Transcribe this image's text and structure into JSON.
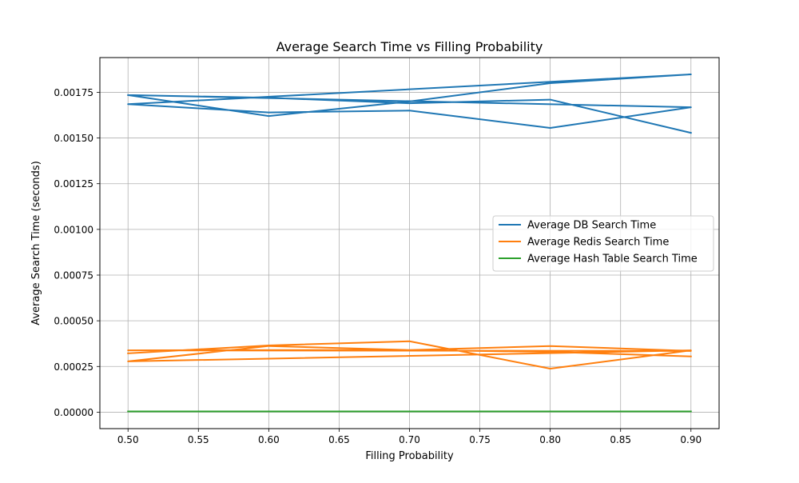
{
  "chart_data": {
    "type": "line",
    "title": "Average Search Time vs Filling Probability",
    "xlabel": "Filling Probability",
    "ylabel": "Average Search Time (seconds)",
    "xlim": [
      0.48,
      0.92
    ],
    "ylim": [
      -9e-05,
      0.00194
    ],
    "x_ticks": [
      {
        "value": 0.5,
        "label": "0.50"
      },
      {
        "value": 0.55,
        "label": "0.55"
      },
      {
        "value": 0.6,
        "label": "0.60"
      },
      {
        "value": 0.65,
        "label": "0.65"
      },
      {
        "value": 0.7,
        "label": "0.70"
      },
      {
        "value": 0.75,
        "label": "0.75"
      },
      {
        "value": 0.8,
        "label": "0.80"
      },
      {
        "value": 0.85,
        "label": "0.85"
      },
      {
        "value": 0.9,
        "label": "0.90"
      }
    ],
    "y_ticks": [
      {
        "value": 0.0,
        "label": "0.00000"
      },
      {
        "value": 0.00025,
        "label": "0.00025"
      },
      {
        "value": 0.0005,
        "label": "0.00050"
      },
      {
        "value": 0.00075,
        "label": "0.00075"
      },
      {
        "value": 0.001,
        "label": "0.00100"
      },
      {
        "value": 0.00125,
        "label": "0.00125"
      },
      {
        "value": 0.0015,
        "label": "0.00150"
      },
      {
        "value": 0.00175,
        "label": "0.00175"
      }
    ],
    "grid": true,
    "legend_position": "center-right",
    "series": [
      {
        "name": "Average DB Search Time",
        "color": "#1f77b4",
        "x": [
          0.5,
          0.6,
          0.7,
          0.8,
          0.9,
          0.5,
          0.6,
          0.7,
          0.8,
          0.9,
          0.5,
          0.6,
          0.7,
          0.8,
          0.9
        ],
        "y": [
          0.001735,
          0.00162,
          0.0017,
          0.0018,
          0.001848,
          0.001685,
          0.00164,
          0.00165,
          0.001555,
          0.001668,
          0.001735,
          0.00172,
          0.00169,
          0.00171,
          0.001528
        ]
      },
      {
        "name": "Average Redis Search Time",
        "color": "#ff7f0e",
        "x": [
          0.5,
          0.6,
          0.7,
          0.8,
          0.9,
          0.5,
          0.6,
          0.7,
          0.8,
          0.9,
          0.5,
          0.6,
          0.7,
          0.8,
          0.9
        ],
        "y": [
          0.000322,
          0.000365,
          0.000388,
          0.000238,
          0.000338,
          0.000278,
          0.000362,
          0.00034,
          0.000362,
          0.000335,
          0.000338,
          0.00034,
          0.00034,
          0.00033,
          0.000305
        ]
      },
      {
        "name": "Average Hash Table Search Time",
        "color": "#2ca02c",
        "x": [
          0.5,
          0.6,
          0.7,
          0.8,
          0.9,
          0.5,
          0.6,
          0.7,
          0.8,
          0.9,
          0.5,
          0.6,
          0.7,
          0.8,
          0.9
        ],
        "y": [
          4e-06,
          4e-06,
          4e-06,
          4e-06,
          4e-06,
          4e-06,
          4e-06,
          4e-06,
          4e-06,
          4e-06,
          4e-06,
          4e-06,
          4e-06,
          4e-06,
          4e-06
        ]
      }
    ]
  }
}
